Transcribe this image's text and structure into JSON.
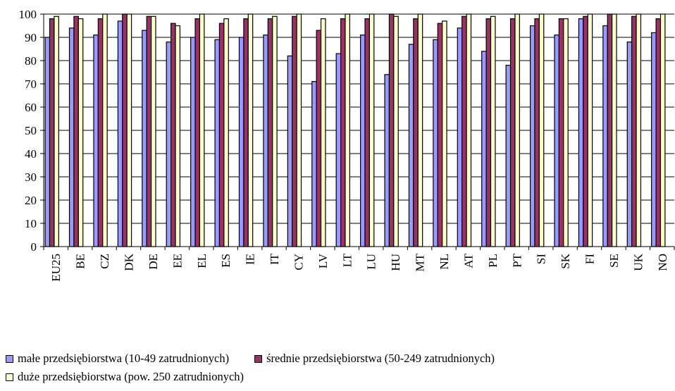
{
  "chart_data": {
    "type": "bar",
    "title": "",
    "xlabel": "",
    "ylabel": "",
    "ylim": [
      0,
      100
    ],
    "yticks": [
      0,
      10,
      20,
      30,
      40,
      50,
      60,
      70,
      80,
      90,
      100
    ],
    "grid": true,
    "legend_position": "bottom",
    "categories": [
      "EU25",
      "BE",
      "CZ",
      "DK",
      "DE",
      "EE",
      "EL",
      "ES",
      "IE",
      "IT",
      "CY",
      "LV",
      "LT",
      "LU",
      "HU",
      "MT",
      "NL",
      "AT",
      "PL",
      "PT",
      "SI",
      "SK",
      "FI",
      "SE",
      "UK",
      "NO"
    ],
    "series": [
      {
        "name": "małe przedsiębiorstwa (10-49 zatrudnionych)",
        "color": "#9999ff",
        "values": [
          90,
          94,
          91,
          97,
          93,
          88,
          90,
          89,
          90,
          91,
          82,
          71,
          83,
          91,
          74,
          87,
          89,
          94,
          84,
          78,
          95,
          91,
          98,
          95,
          88,
          92
        ]
      },
      {
        "name": "średnie przedsiębiorstwa (50-249 zatrudnionych)",
        "color": "#993366",
        "values": [
          98,
          99,
          98,
          100,
          99,
          96,
          98,
          96,
          98,
          98,
          99,
          93,
          98,
          98,
          100,
          98,
          96,
          99,
          98,
          98,
          98,
          98,
          99,
          100,
          99,
          98
        ]
      },
      {
        "name": "duże przedsiębiorstwa (pow. 250 zatrudnionych)",
        "color": "#ffffcc",
        "values": [
          99,
          98,
          100,
          100,
          99,
          95,
          100,
          98,
          100,
          99,
          100,
          98,
          100,
          100,
          99,
          100,
          97,
          100,
          99,
          100,
          100,
          98,
          100,
          100,
          100,
          100
        ]
      }
    ]
  }
}
